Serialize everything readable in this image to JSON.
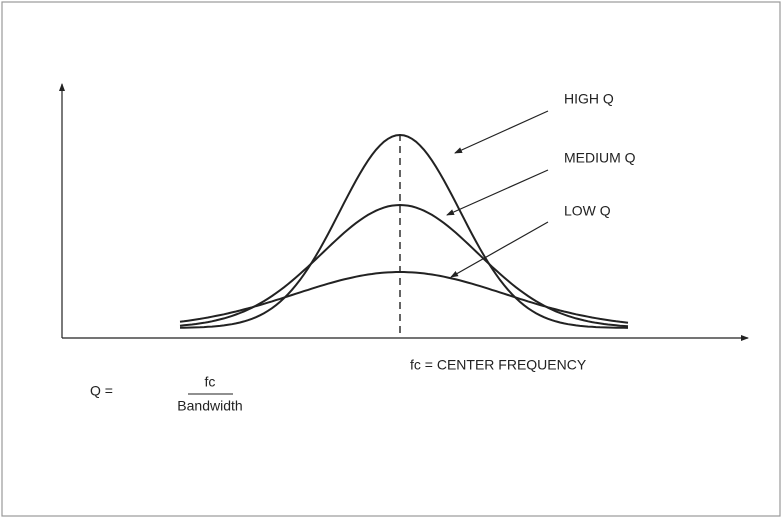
{
  "labels": {
    "high_q": "HIGH Q",
    "medium_q": "MEDIUM Q",
    "low_q": "LOW Q",
    "center_frequency": "fc = CENTER FREQUENCY"
  },
  "formula": {
    "lhs": "Q =",
    "numerator": "fc",
    "denominator": "Bandwidth"
  }
}
